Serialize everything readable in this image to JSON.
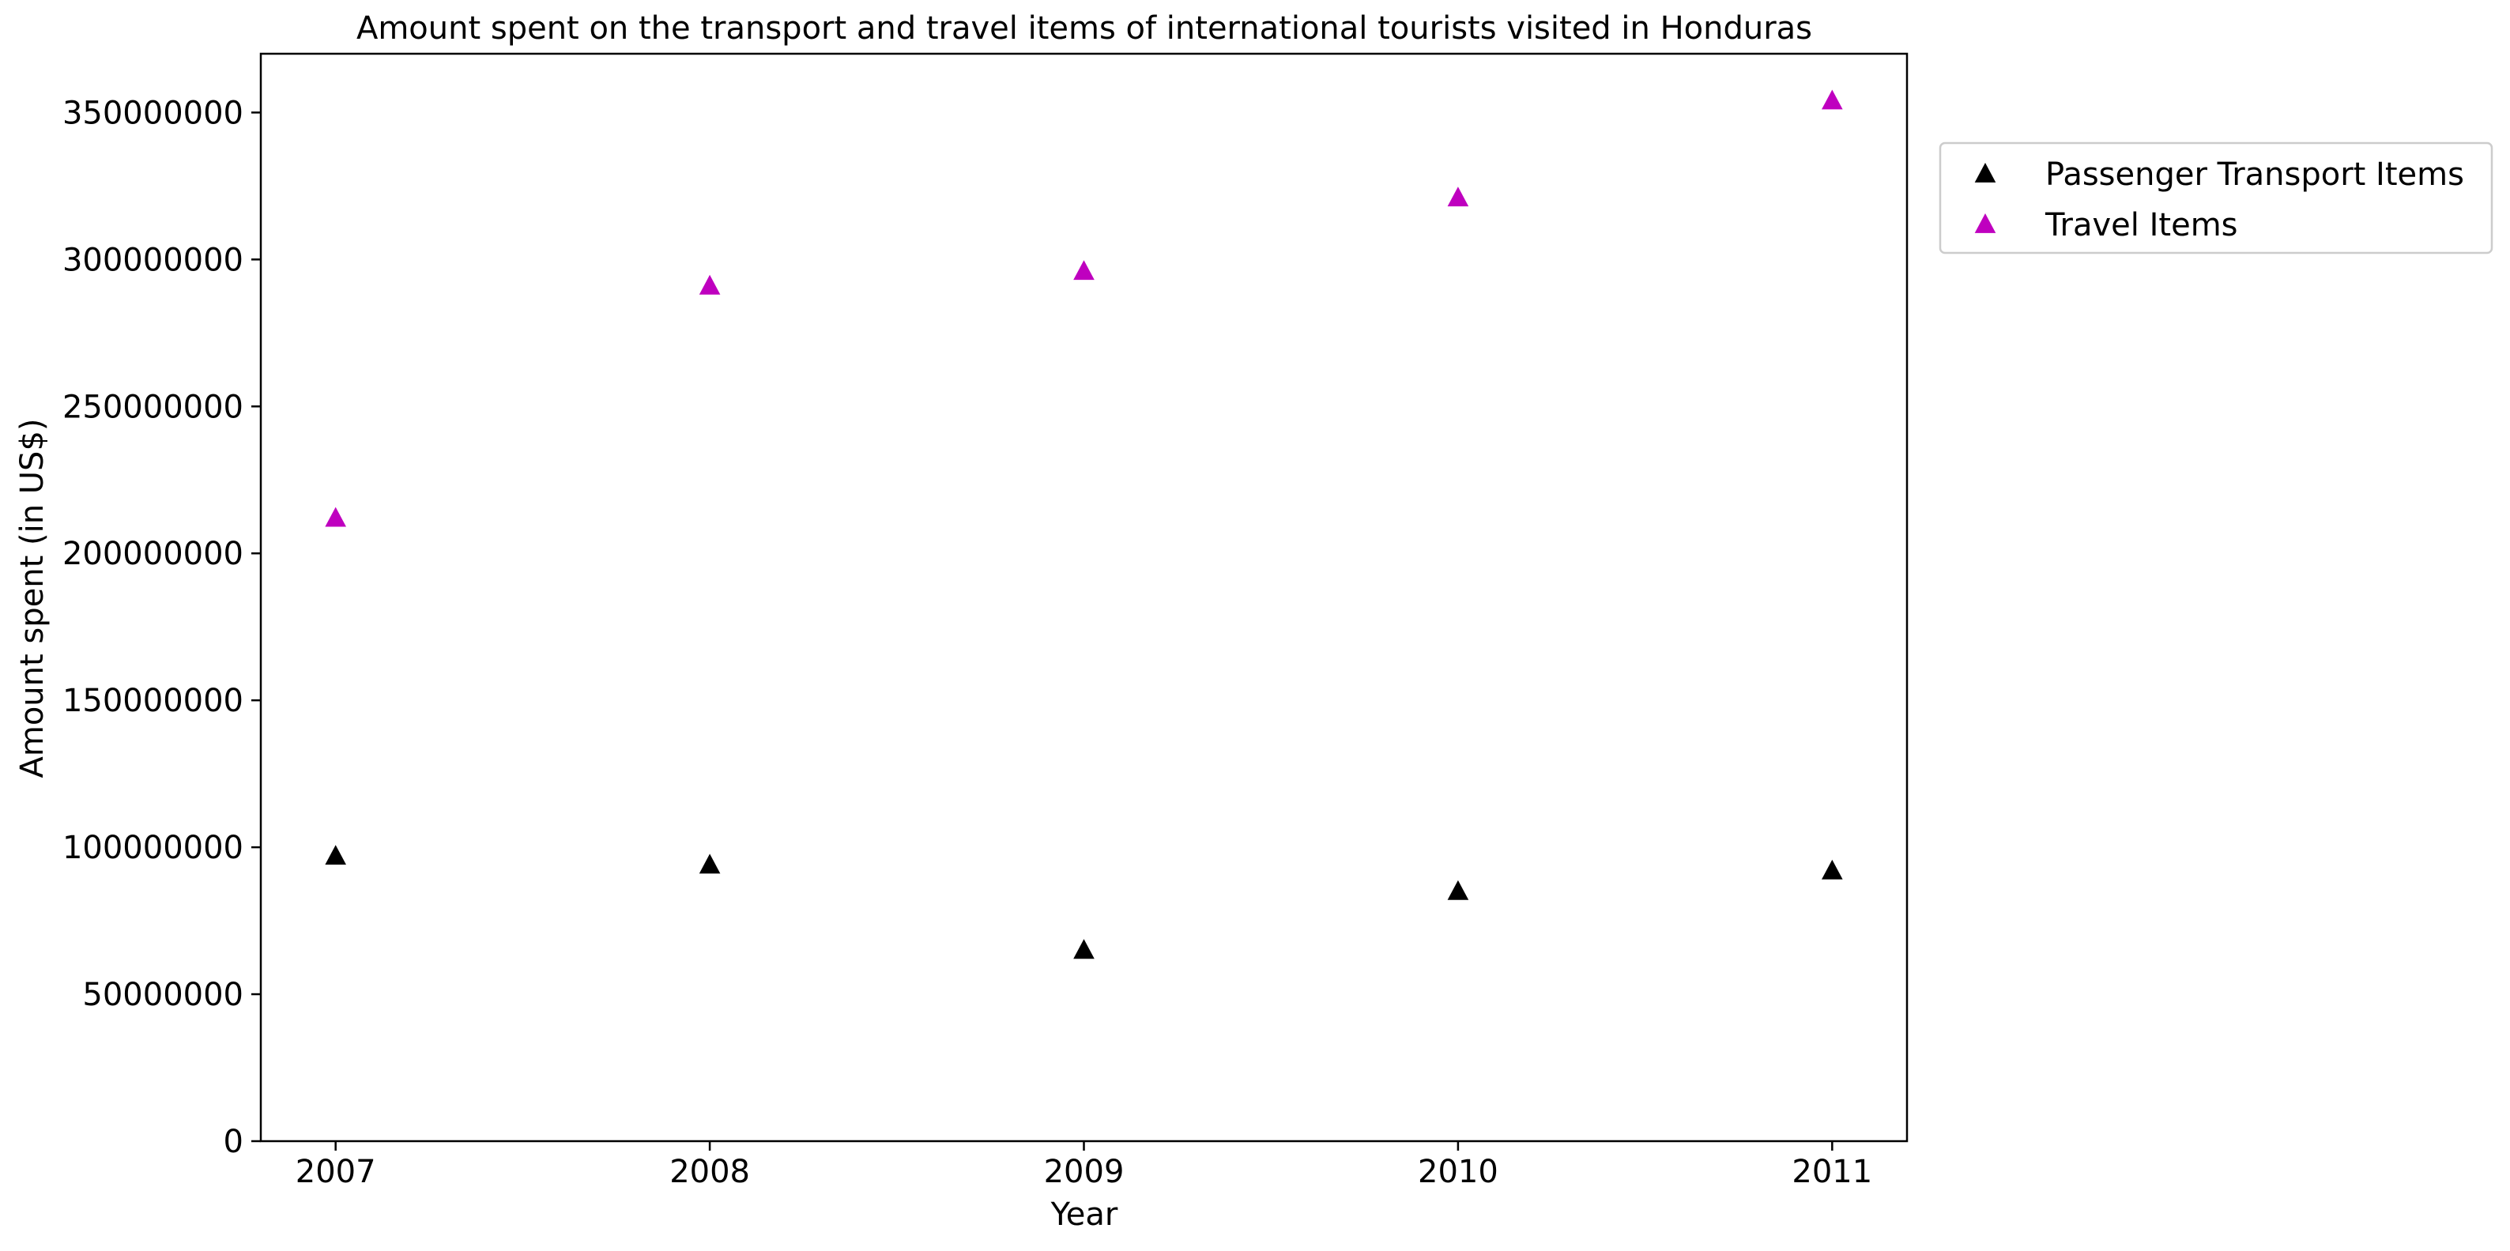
{
  "chart_data": {
    "type": "scatter",
    "title": "Amount spent on the transport and travel items of international tourists visited in Honduras",
    "xlabel": "Year",
    "ylabel": "Amount spent (in US$)",
    "x": [
      2007,
      2008,
      2009,
      2010,
      2011
    ],
    "x_tick_labels": [
      "2007",
      "2008",
      "2009",
      "2010",
      "2011"
    ],
    "xlim": [
      2006.8,
      2011.2
    ],
    "ylim": [
      0,
      370000000
    ],
    "y_ticks": [
      0,
      50000000,
      100000000,
      150000000,
      200000000,
      250000000,
      300000000,
      350000000
    ],
    "y_tick_labels": [
      "0",
      "50000000",
      "100000000",
      "150000000",
      "200000000",
      "250000000",
      "300000000",
      "350000000"
    ],
    "grid": false,
    "marker": "triangle",
    "legend_position": "outside-right-top",
    "series": [
      {
        "name": "Passenger Transport Items",
        "color": "#000000",
        "values": [
          97000000,
          94000000,
          65000000,
          85000000,
          92000000
        ]
      },
      {
        "name": "Travel Items",
        "color": "#bf00bf",
        "values": [
          212000000,
          291000000,
          296000000,
          321000000,
          354000000
        ]
      }
    ]
  }
}
